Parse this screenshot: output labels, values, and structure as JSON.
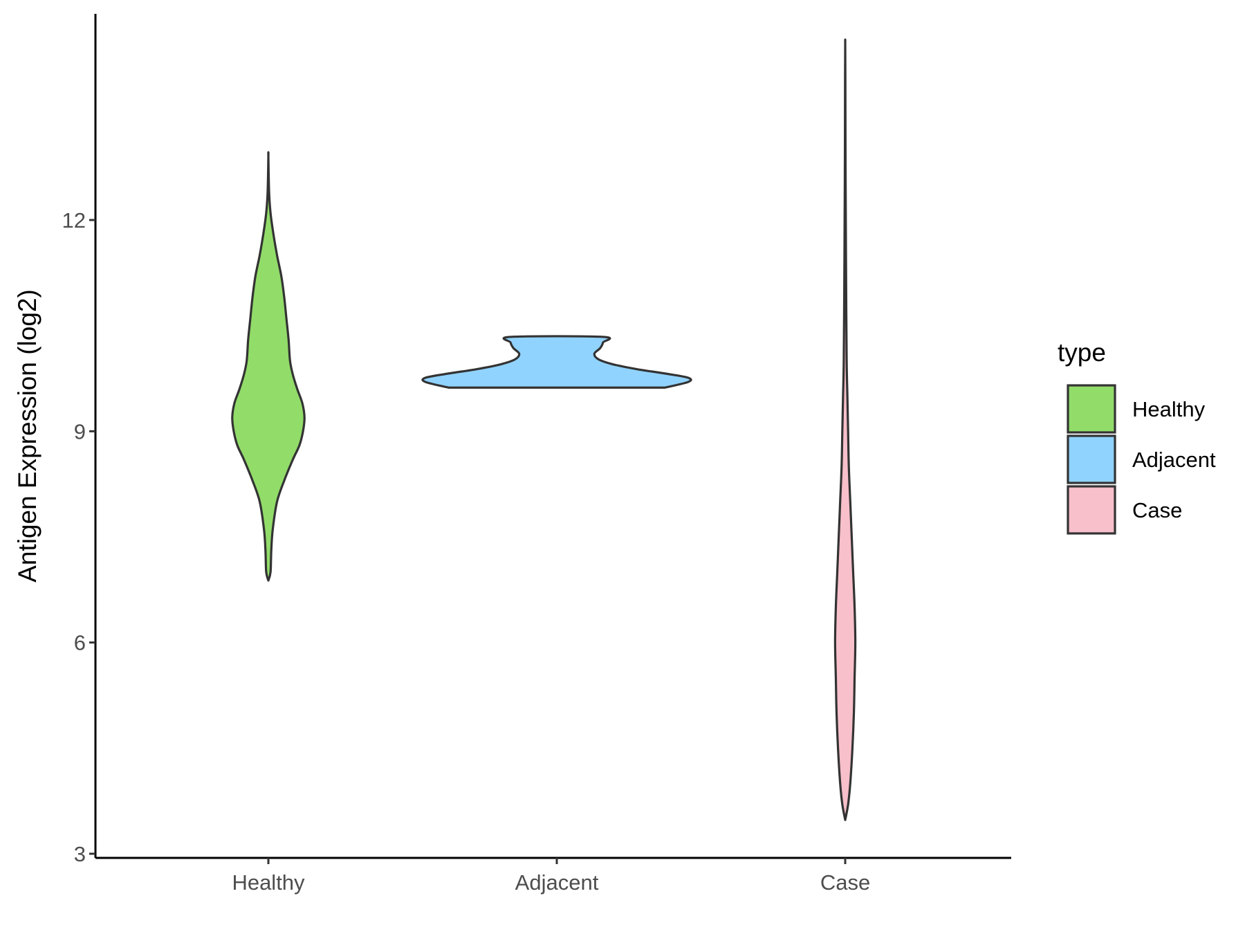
{
  "chart_data": {
    "type": "violin",
    "ylabel": "Antigen Expression (log2)",
    "xlabel": "",
    "ylim": [
      3,
      15
    ],
    "yticks": [
      3,
      6,
      9,
      12
    ],
    "categories": [
      "Healthy",
      "Adjacent",
      "Case"
    ],
    "legend": {
      "title": "type",
      "position": "right",
      "entries": [
        "Healthy",
        "Adjacent",
        "Case"
      ]
    },
    "grid": false,
    "series": [
      {
        "name": "Healthy",
        "color": "#92DC6A",
        "density": [
          [
            6.88,
            0.0
          ],
          [
            7.0,
            0.03
          ],
          [
            7.3,
            0.04
          ],
          [
            7.6,
            0.06
          ],
          [
            8.0,
            0.12
          ],
          [
            8.3,
            0.22
          ],
          [
            8.6,
            0.34
          ],
          [
            8.8,
            0.43
          ],
          [
            9.0,
            0.48
          ],
          [
            9.2,
            0.5
          ],
          [
            9.4,
            0.47
          ],
          [
            9.6,
            0.4
          ],
          [
            9.8,
            0.34
          ],
          [
            10.0,
            0.3
          ],
          [
            10.3,
            0.28
          ],
          [
            10.6,
            0.25
          ],
          [
            10.9,
            0.22
          ],
          [
            11.2,
            0.18
          ],
          [
            11.5,
            0.12
          ],
          [
            11.8,
            0.07
          ],
          [
            12.1,
            0.03
          ],
          [
            12.4,
            0.01
          ],
          [
            12.9,
            0.0
          ]
        ]
      },
      {
        "name": "Adjacent",
        "color": "#91D3FF",
        "density": [
          [
            9.62,
            1.5
          ],
          [
            9.7,
            1.82
          ],
          [
            9.76,
            1.82
          ],
          [
            9.82,
            1.5
          ],
          [
            9.88,
            1.12
          ],
          [
            9.95,
            0.78
          ],
          [
            10.02,
            0.58
          ],
          [
            10.1,
            0.52
          ],
          [
            10.18,
            0.6
          ],
          [
            10.26,
            0.64
          ],
          [
            10.34,
            0.64
          ]
        ]
      },
      {
        "name": "Case",
        "color": "#F7C0CB",
        "density": [
          [
            3.48,
            0.0
          ],
          [
            3.7,
            0.04
          ],
          [
            4.0,
            0.07
          ],
          [
            4.5,
            0.1
          ],
          [
            5.0,
            0.12
          ],
          [
            5.5,
            0.13
          ],
          [
            6.0,
            0.14
          ],
          [
            6.5,
            0.13
          ],
          [
            7.0,
            0.11
          ],
          [
            7.5,
            0.09
          ],
          [
            8.0,
            0.07
          ],
          [
            8.5,
            0.05
          ],
          [
            9.0,
            0.04
          ],
          [
            9.5,
            0.03
          ],
          [
            10.0,
            0.02
          ],
          [
            11.0,
            0.013
          ],
          [
            12.0,
            0.008
          ],
          [
            13.0,
            0.004
          ],
          [
            14.0,
            0.002
          ],
          [
            14.5,
            0.0
          ]
        ]
      }
    ]
  }
}
